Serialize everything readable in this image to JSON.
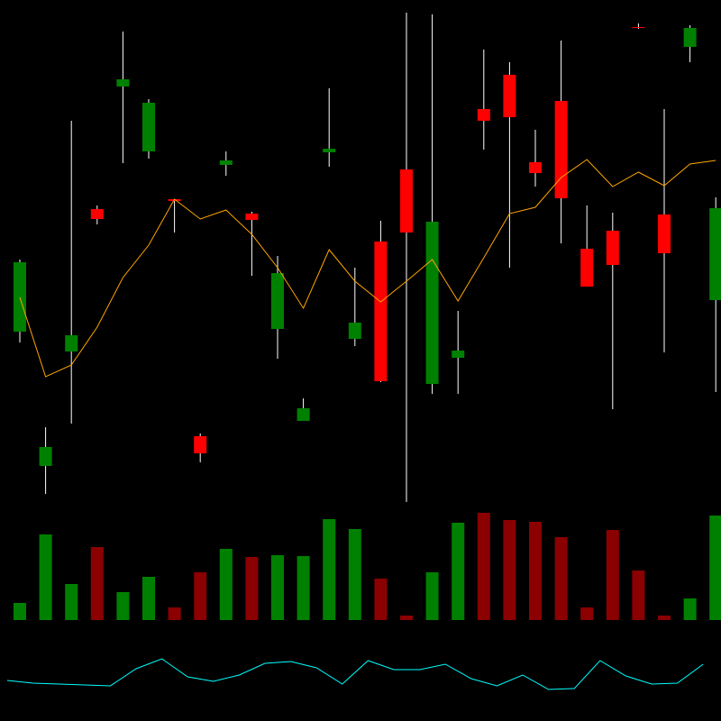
{
  "chart_data": {
    "type": "candlestick",
    "up_color": "#008000",
    "down_color": "#ff0000",
    "volume_down_color": "#8b0000",
    "wick_color": "#ffffff",
    "ylim": [
      0,
      560
    ],
    "open": [
      192,
      43,
      170,
      328,
      464,
      392,
      339,
      76,
      377,
      323,
      195,
      93,
      391,
      184,
      292,
      372,
      134,
      163,
      439,
      477,
      380,
      448,
      284,
      304,
      530,
      322,
      508,
      227
    ],
    "high": [
      272,
      86,
      426,
      332,
      525,
      450,
      339,
      79,
      392,
      325,
      276,
      118,
      462,
      263,
      315,
      546,
      544,
      215,
      505,
      491,
      416,
      515,
      332,
      324,
      534,
      439,
      532,
      341
    ],
    "low": [
      180,
      12,
      90,
      311,
      379,
      384,
      302,
      47,
      365,
      254,
      162,
      93,
      375,
      176,
      136,
      3,
      123,
      123,
      394,
      263,
      353,
      290,
      242,
      106,
      528,
      169,
      491,
      125
    ],
    "close": [
      269,
      64,
      188,
      317,
      472,
      446,
      337,
      57,
      382,
      316,
      257,
      107,
      395,
      202,
      137,
      302,
      314,
      171,
      426,
      430,
      368,
      340,
      242,
      266,
      529,
      279,
      529,
      329
    ],
    "ma": {
      "color": "#ffa500",
      "values": [
        230,
        142,
        155,
        197,
        252,
        288,
        339,
        317,
        327,
        300,
        263,
        218,
        283,
        248,
        225,
        248,
        272,
        226,
        274,
        323,
        330,
        363,
        383,
        353,
        369,
        354,
        378,
        382
      ]
    },
    "volume": {
      "ylim": [
        0,
        128
      ],
      "values": [
        19,
        95,
        40,
        81,
        31,
        48,
        14,
        53,
        79,
        70,
        72,
        71,
        112,
        101,
        46,
        5,
        53,
        108,
        119,
        111,
        109,
        92,
        14,
        100,
        55,
        5,
        24,
        116
      ]
    },
    "indicator": {
      "color": "#00ffff",
      "ylim": [
        0,
        100
      ],
      "values": [
        45,
        42,
        41,
        40,
        39,
        58,
        69,
        49,
        44,
        51,
        64,
        66,
        59,
        41,
        67,
        57,
        57,
        63,
        47,
        39,
        51,
        35,
        36,
        67,
        50,
        41,
        42,
        63
      ]
    }
  }
}
